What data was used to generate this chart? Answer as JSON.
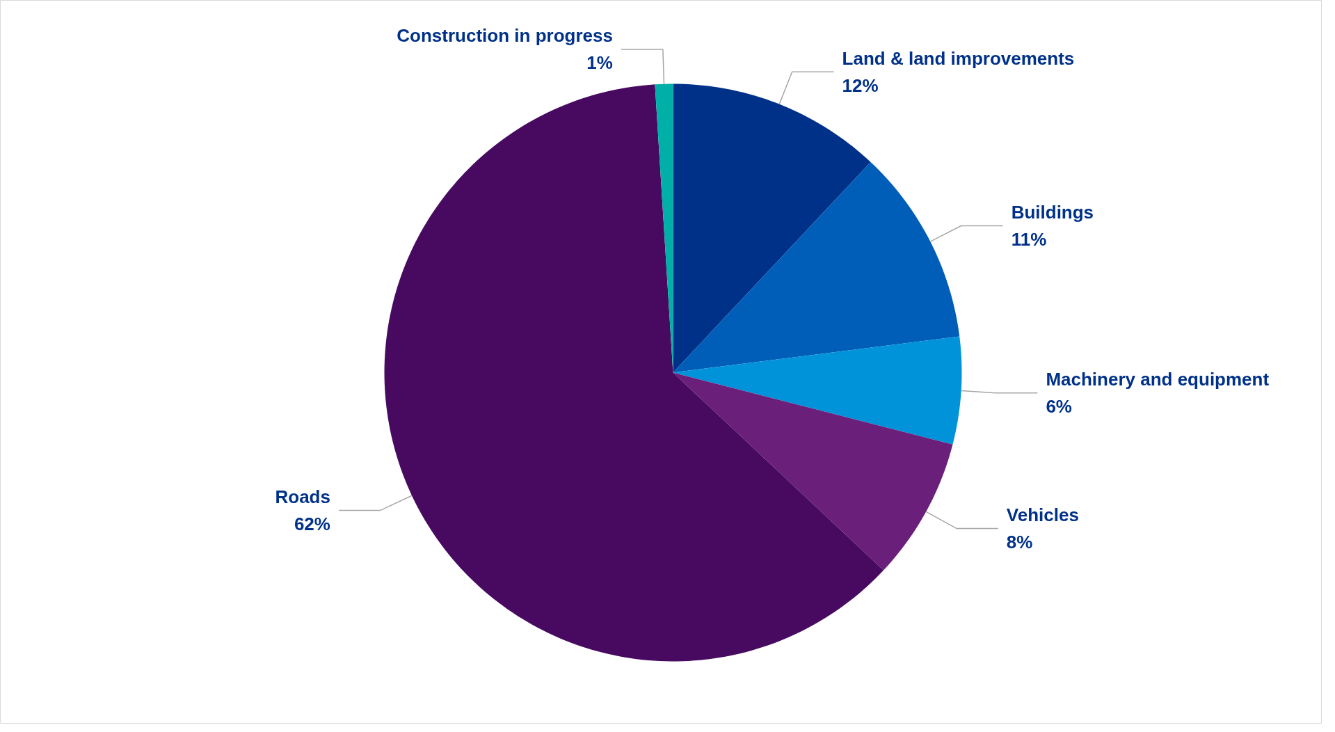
{
  "chart_data": {
    "type": "pie",
    "categories": [
      "Land & land improvements",
      "Buildings",
      "Machinery and equipment",
      "Vehicles",
      "Roads",
      "Construction in progress"
    ],
    "values": [
      12,
      11,
      6,
      8,
      62,
      1
    ],
    "value_labels": [
      "12%",
      "11%",
      "6%",
      "8%",
      "62%",
      "1%"
    ],
    "colors": [
      "#003189",
      "#005eb8",
      "#0093da",
      "#6a1f7a",
      "#470a60",
      "#00b0a8"
    ]
  }
}
